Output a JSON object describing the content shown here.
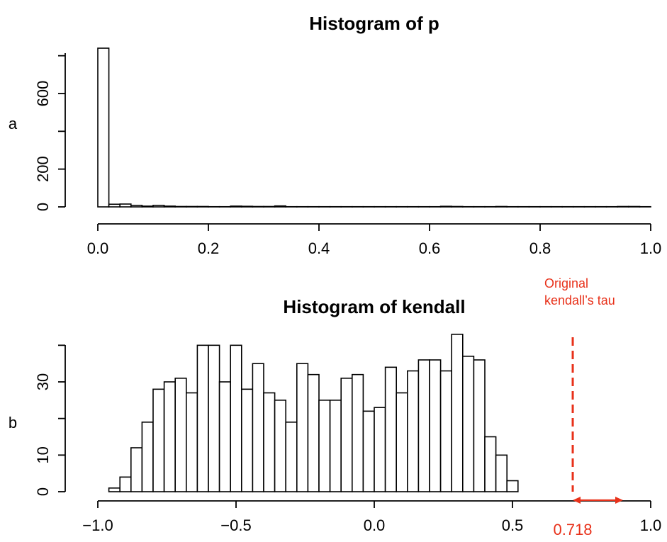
{
  "colors": {
    "annotation": "#e8311a",
    "bar_fill": "#ffffff",
    "bar_stroke": "#000000"
  },
  "chart_data": [
    {
      "panel_label": "a",
      "type": "bar",
      "title": "Histogram of p",
      "xlabel": "",
      "ylabel": "",
      "xlim": [
        0,
        1
      ],
      "ylim": [
        0,
        840
      ],
      "x_ticks": [
        "0.0",
        "0.2",
        "0.4",
        "0.6",
        "0.8",
        "1.0"
      ],
      "y_ticks": [
        "0",
        "200",
        "600"
      ],
      "bin_width": 0.02,
      "bin_start": 0,
      "values": [
        840,
        14,
        15,
        8,
        4,
        8,
        4,
        2,
        2,
        2,
        1,
        1,
        4,
        3,
        2,
        2,
        5,
        1,
        1,
        1,
        1,
        1,
        1,
        1,
        1,
        1,
        1,
        1,
        1,
        1,
        1,
        3,
        2,
        1,
        1,
        1,
        2,
        1,
        1,
        1,
        1,
        1,
        1,
        1,
        1,
        1,
        1,
        2,
        2,
        1
      ]
    },
    {
      "panel_label": "b",
      "type": "bar",
      "title": "Histogram of kendall",
      "xlabel": "",
      "ylabel": "",
      "xlim": [
        -1,
        1
      ],
      "ylim": [
        0,
        40
      ],
      "x_ticks": [
        "−1.0",
        "−0.5",
        "0.0",
        "0.5",
        "1.0"
      ],
      "y_ticks": [
        "0",
        "10",
        "30"
      ],
      "bin_width": 0.04,
      "bin_start": -0.96,
      "values": [
        1,
        4,
        12,
        19,
        28,
        30,
        31,
        27,
        40,
        40,
        30,
        40,
        28,
        35,
        27,
        25,
        19,
        35,
        32,
        25,
        25,
        31,
        32,
        22,
        23,
        34,
        27,
        33,
        36,
        36,
        33,
        43,
        37,
        36,
        15,
        10,
        3
      ],
      "annotation": {
        "label_line1": "Original",
        "label_line2": "kendall’s tau",
        "value": 0.718,
        "value_label": "0.718",
        "arrow_to": 0.9
      }
    }
  ]
}
